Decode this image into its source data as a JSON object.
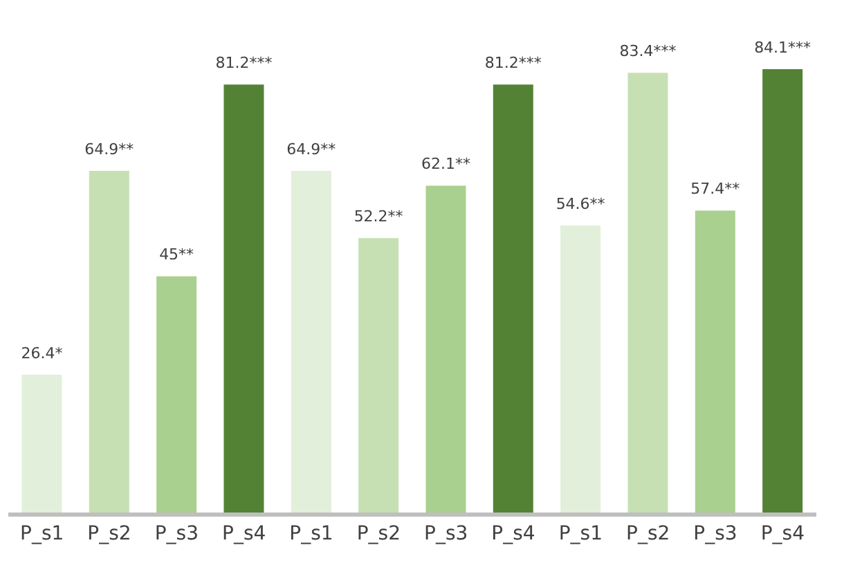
{
  "chart_data": {
    "type": "bar",
    "categories": [
      "P_s1",
      "P_s2",
      "P_s3",
      "P_s4",
      "P_s1",
      "P_s2",
      "P_s3",
      "P_s4",
      "P_s1",
      "P_s2",
      "P_s3",
      "P_s4"
    ],
    "values": [
      26.4,
      64.9,
      45,
      81.2,
      64.9,
      52.2,
      62.1,
      81.2,
      54.6,
      83.4,
      57.4,
      84.1
    ],
    "colors": [
      "#e2efda",
      "#c6e0b4",
      "#a9d08e",
      "#548235",
      "#e2efda",
      "#c6e0b4",
      "#a9d08e",
      "#548235",
      "#e2efda",
      "#c6e0b4",
      "#a9d08e",
      "#548235"
    ],
    "value_labels": [
      "26.4*",
      "64.9**",
      "45**",
      "81.2***",
      "64.9**",
      "52.2**",
      "62.1**",
      "81.2***",
      "54.6**",
      "83.4***",
      "57.4**",
      "84.1***"
    ],
    "tick_labels": "x"
  }
}
